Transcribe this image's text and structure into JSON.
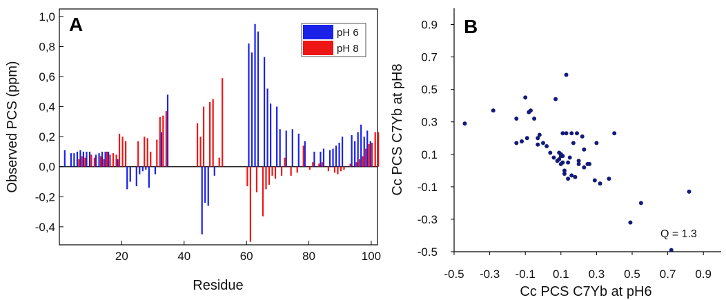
{
  "chart_data": [
    {
      "type": "bar",
      "panel_label": "A",
      "xlabel": "Residue",
      "ylabel": "Observed PCS (ppm)",
      "xlim": [
        0,
        102
      ],
      "ylim": [
        -0.52,
        1.05
      ],
      "xticks": [
        20,
        40,
        60,
        80,
        100
      ],
      "xtick_labels": [
        "20",
        "40",
        "60",
        "80",
        "100"
      ],
      "yticks": [
        -0.4,
        -0.2,
        0.0,
        0.2,
        0.4,
        0.6,
        0.8,
        1.0
      ],
      "ytick_labels": [
        "-0,4",
        "-0,2",
        "0,0",
        "0,2",
        "0,4",
        "0,6",
        "0,8",
        "1,0"
      ],
      "legend_position": "top-right",
      "series": [
        {
          "name": "pH 6",
          "color": "#1a22e8",
          "x": [
            2,
            4,
            5,
            6,
            7,
            8,
            9,
            10,
            12,
            13,
            14,
            15,
            16,
            19,
            22,
            23,
            25,
            26,
            27,
            28,
            29,
            31,
            33,
            35,
            46,
            47,
            48,
            50,
            61,
            62,
            63,
            64,
            66,
            67,
            68,
            70,
            71,
            73,
            75,
            77,
            79,
            82,
            84,
            85,
            87,
            88,
            89,
            90,
            91,
            94,
            95,
            96,
            97,
            98,
            99,
            100
          ],
          "values": [
            0.11,
            0.09,
            0.09,
            0.1,
            0.11,
            0.1,
            0.1,
            0.1,
            0.08,
            0.09,
            0.1,
            0.1,
            0.1,
            0.05,
            -0.15,
            -0.1,
            -0.13,
            -0.05,
            -0.03,
            -0.02,
            -0.14,
            -0.05,
            0.23,
            0.48,
            -0.45,
            -0.24,
            -0.26,
            -0.06,
            0.82,
            0.76,
            0.95,
            0.9,
            0.73,
            0.52,
            0.42,
            0.4,
            0.25,
            0.24,
            0.25,
            0.22,
            0.17,
            0.1,
            0.1,
            0.12,
            0.11,
            0.12,
            0.14,
            0.16,
            0.2,
            0.21,
            0.17,
            0.23,
            0.28,
            0.2,
            0.24,
            0.17
          ]
        },
        {
          "name": "pH 8",
          "color": "#ee1515",
          "x": [
            6,
            7,
            8,
            10,
            11,
            13,
            14,
            15,
            16,
            17,
            18,
            19,
            20,
            21,
            25,
            27,
            28,
            29,
            31,
            32,
            33,
            34,
            44,
            45,
            46,
            48,
            49,
            51,
            52,
            60,
            61,
            63,
            65,
            66,
            67,
            68,
            69,
            71,
            72,
            74,
            76,
            78,
            80,
            81,
            83,
            84,
            86,
            88,
            89,
            90,
            91,
            93,
            95,
            96,
            97,
            98,
            99,
            100,
            101,
            102
          ],
          "values": [
            0.05,
            0.07,
            0.06,
            0.08,
            0.06,
            0.07,
            0.05,
            0.1,
            0.08,
            0.09,
            0.08,
            0.22,
            0.2,
            0.17,
            0.17,
            0.2,
            0.19,
            0.1,
            0.18,
            0.33,
            0.34,
            0.37,
            0.29,
            0.2,
            0.4,
            0.43,
            0.45,
            0.06,
            0.59,
            -0.13,
            -0.5,
            -0.17,
            -0.33,
            -0.15,
            -0.12,
            -0.06,
            -0.08,
            -0.06,
            0.06,
            -0.06,
            -0.04,
            0.14,
            -0.02,
            0.03,
            0.02,
            0.03,
            -0.03,
            -0.04,
            -0.05,
            -0.03,
            -0.02,
            0.02,
            0.03,
            0.05,
            0.07,
            0.12,
            0.15,
            0.16,
            0.23,
            0.23
          ]
        }
      ]
    },
    {
      "type": "scatter",
      "panel_label": "B",
      "xlabel": "Cc PCS C7Yb at pH6",
      "ylabel": "Cc PCS C7Yb at pH8",
      "xlim": [
        -0.5,
        1.0
      ],
      "ylim": [
        -0.5,
        1.0
      ],
      "xticks": [
        -0.5,
        -0.3,
        -0.1,
        0.1,
        0.3,
        0.5,
        0.7,
        0.9
      ],
      "xtick_labels": [
        "-0.5",
        "-0.3",
        "-0.1",
        "0.1",
        "0.3",
        "0.5",
        "0.7",
        "0.9"
      ],
      "yticks": [
        -0.5,
        -0.3,
        -0.1,
        0.1,
        0.3,
        0.5,
        0.7,
        0.9
      ],
      "ytick_labels": [
        "-0.5",
        "-0.3",
        "-0.1",
        "0.1",
        "0.3",
        "0.5",
        "0.7",
        "0.9"
      ],
      "annotation": "Q = 1.3",
      "color": "#141a78",
      "x": [
        -0.44,
        -0.28,
        -0.15,
        -0.15,
        -0.12,
        -0.1,
        -0.09,
        -0.08,
        -0.07,
        -0.05,
        -0.03,
        -0.03,
        -0.02,
        0.0,
        0.02,
        0.04,
        0.06,
        0.07,
        0.08,
        0.09,
        0.09,
        0.1,
        0.1,
        0.1,
        0.11,
        0.11,
        0.11,
        0.12,
        0.12,
        0.13,
        0.13,
        0.14,
        0.14,
        0.15,
        0.16,
        0.16,
        0.17,
        0.18,
        0.19,
        0.2,
        0.2,
        0.22,
        0.23,
        0.23,
        0.25,
        0.26,
        0.29,
        0.3,
        0.32,
        0.37,
        0.4,
        0.49,
        0.55,
        0.72,
        0.82
      ],
      "y": [
        0.29,
        0.37,
        0.17,
        0.32,
        0.18,
        0.45,
        0.2,
        0.36,
        0.37,
        0.32,
        0.16,
        0.2,
        0.22,
        0.17,
        0.15,
        0.11,
        0.08,
        0.44,
        0.06,
        0.11,
        0.07,
        0.04,
        0.09,
        0.1,
        0.09,
        0.23,
        0.05,
        -0.02,
        0.0,
        0.59,
        0.23,
        -0.05,
        0.05,
        0.08,
        0.23,
        -0.03,
        0.17,
        -0.04,
        0.23,
        0.06,
        0.04,
        0.21,
        0.13,
        0.02,
        0.04,
        0.04,
        -0.06,
        0.17,
        -0.08,
        -0.05,
        0.23,
        -0.32,
        -0.2,
        -0.49,
        -0.13
      ]
    }
  ]
}
